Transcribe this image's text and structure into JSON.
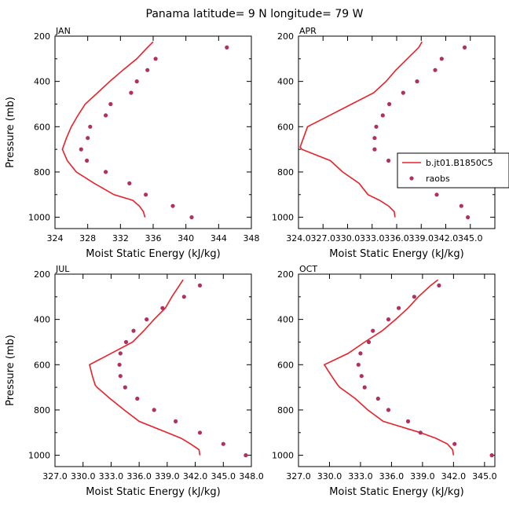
{
  "title": "Panama  latitude= 9 N longitude= 79 W",
  "colors": {
    "model": "#e8212b",
    "obs": "#b03060",
    "axis": "#000000"
  },
  "legend": {
    "model_label": "b.jt01.B1850C5",
    "obs_label": "raobs",
    "panel": 1
  },
  "chart_data": [
    {
      "type": "line",
      "panel": "JAN",
      "xlabel": "Moist Static Energy (kJ/kg)",
      "ylabel": "Pressure (mb)",
      "xlim": [
        324,
        348
      ],
      "ylim": [
        200,
        1050
      ],
      "x_ticks": [
        "324",
        "328",
        "332",
        "336",
        "340",
        "344",
        "348"
      ],
      "y_ticks": [
        "200",
        "400",
        "600",
        "800",
        "1000"
      ],
      "model": {
        "pressure": [
          1000,
          975,
          950,
          925,
          900,
          850,
          800,
          750,
          700,
          650,
          600,
          550,
          500,
          450,
          400,
          350,
          300,
          250,
          225
        ],
        "mse": [
          335.0,
          334.8,
          334.3,
          333.5,
          331.2,
          328.8,
          326.6,
          325.5,
          324.9,
          325.4,
          326.0,
          326.8,
          327.7,
          329.2,
          330.7,
          332.3,
          334.0,
          335.3,
          336.0
        ]
      },
      "obs": {
        "pressure": [
          250,
          300,
          350,
          400,
          450,
          500,
          550,
          600,
          650,
          700,
          750,
          800,
          850,
          900,
          950,
          1000
        ],
        "mse": [
          345.0,
          336.3,
          335.3,
          334.0,
          333.3,
          330.8,
          330.2,
          328.3,
          328.0,
          327.2,
          327.9,
          330.2,
          333.1,
          335.1,
          338.4,
          340.7
        ]
      }
    },
    {
      "type": "line",
      "panel": "APR",
      "xlabel": "Moist Static Energy (kJ/kg)",
      "ylabel": "",
      "xlim": [
        324.0,
        348.0
      ],
      "ylim": [
        200,
        1050
      ],
      "x_ticks": [
        "324.0",
        "327.0",
        "330.0",
        "333.0",
        "336.0",
        "339.0",
        "342.0",
        "345.0"
      ],
      "y_ticks": [
        "200",
        "400",
        "600",
        "800",
        "1000"
      ],
      "model": {
        "pressure": [
          1000,
          975,
          950,
          925,
          900,
          850,
          800,
          750,
          700,
          690,
          650,
          600,
          550,
          500,
          450,
          400,
          350,
          300,
          250,
          225
        ],
        "mse": [
          335.8,
          335.7,
          335.0,
          333.9,
          332.5,
          331.4,
          329.4,
          327.9,
          324.4,
          324.2,
          324.6,
          325.1,
          327.8,
          330.5,
          333.2,
          334.7,
          335.9,
          337.3,
          338.7,
          339.1
        ]
      },
      "obs": {
        "pressure": [
          250,
          300,
          350,
          400,
          450,
          500,
          550,
          600,
          650,
          700,
          750,
          800,
          850,
          900,
          950,
          1000
        ],
        "mse": [
          344.3,
          341.5,
          340.7,
          338.5,
          336.8,
          335.1,
          334.3,
          333.5,
          333.3,
          333.3,
          335.0,
          337.6,
          338.5,
          340.9,
          343.9,
          344.7
        ]
      }
    },
    {
      "type": "line",
      "panel": "JUL",
      "xlabel": "Moist Static Energy (kJ/kg)",
      "ylabel": "Pressure (mb)",
      "xlim": [
        327.0,
        348.0
      ],
      "ylim": [
        200,
        1050
      ],
      "x_ticks": [
        "327.0",
        "330.0",
        "333.0",
        "336.0",
        "339.0",
        "342.0",
        "345.0",
        "348.0"
      ],
      "y_ticks": [
        "200",
        "400",
        "600",
        "800",
        "1000"
      ],
      "model": {
        "pressure": [
          1000,
          975,
          950,
          925,
          900,
          850,
          800,
          750,
          700,
          690,
          650,
          600,
          550,
          500,
          450,
          400,
          350,
          300,
          250,
          225
        ],
        "mse": [
          342.5,
          342.4,
          341.5,
          340.5,
          339.0,
          336.0,
          334.4,
          332.9,
          331.5,
          331.3,
          331.0,
          330.7,
          333.0,
          335.3,
          336.5,
          337.6,
          338.8,
          339.5,
          340.3,
          340.7
        ]
      },
      "obs": {
        "pressure": [
          250,
          300,
          350,
          400,
          450,
          500,
          550,
          600,
          650,
          700,
          750,
          800,
          850,
          900,
          950,
          1000
        ],
        "mse": [
          342.5,
          340.8,
          338.5,
          336.8,
          335.4,
          334.6,
          334.0,
          333.9,
          334.0,
          334.5,
          335.8,
          337.6,
          339.9,
          342.5,
          345.0,
          347.4
        ]
      }
    },
    {
      "type": "line",
      "panel": "OCT",
      "xlabel": "Moist Static Energy (kJ/kg)",
      "ylabel": "",
      "xlim": [
        327.0,
        346.0
      ],
      "ylim": [
        200,
        1050
      ],
      "x_ticks": [
        "327.0",
        "330.0",
        "333.0",
        "336.0",
        "339.0",
        "342.0",
        "345.0"
      ],
      "y_ticks": [
        "200",
        "400",
        "600",
        "800",
        "1000"
      ],
      "model": {
        "pressure": [
          1000,
          975,
          950,
          925,
          900,
          850,
          800,
          750,
          700,
          690,
          650,
          600,
          550,
          500,
          450,
          400,
          350,
          300,
          250,
          225
        ],
        "mse": [
          342.0,
          341.9,
          341.4,
          340.3,
          338.8,
          335.2,
          333.7,
          332.5,
          331.0,
          330.8,
          330.2,
          329.5,
          331.8,
          333.4,
          335.1,
          336.4,
          337.6,
          338.6,
          339.8,
          340.5
        ]
      },
      "obs": {
        "pressure": [
          250,
          300,
          350,
          400,
          450,
          500,
          550,
          600,
          650,
          700,
          750,
          800,
          850,
          900,
          950,
          1000
        ],
        "mse": [
          340.6,
          338.2,
          336.7,
          335.7,
          334.2,
          333.8,
          333.0,
          332.8,
          333.1,
          333.4,
          334.7,
          335.7,
          337.6,
          338.8,
          342.1,
          345.7
        ]
      }
    }
  ]
}
